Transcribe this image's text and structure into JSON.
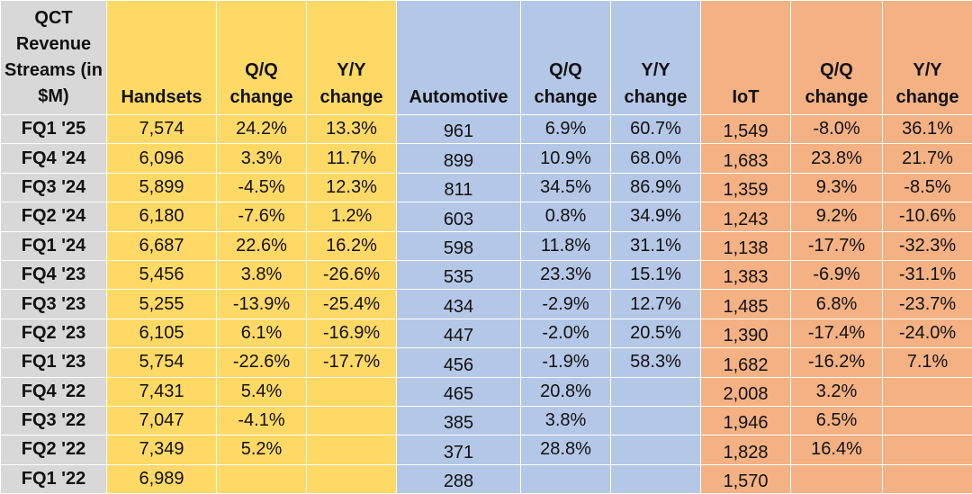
{
  "chart_data": {
    "type": "table",
    "columns": [
      "QCT Revenue Streams (in $M)",
      "Handsets",
      "Q/Q change",
      "Y/Y change",
      "Automotive",
      "Q/Q change",
      "Y/Y change",
      "IoT",
      "Q/Q change",
      "Y/Y change"
    ],
    "colors": {
      "quarter": "#d8d8d8",
      "handsets": "#ffd966",
      "automotive": "#b4c7e7",
      "iot": "#f4b183"
    },
    "rows": [
      [
        "FQ1 '25",
        "7,574",
        "24.2%",
        "13.3%",
        "961",
        "6.9%",
        "60.7%",
        "1,549",
        "-8.0%",
        "36.1%"
      ],
      [
        "FQ4 '24",
        "6,096",
        "3.3%",
        "11.7%",
        "899",
        "10.9%",
        "68.0%",
        "1,683",
        "23.8%",
        "21.7%"
      ],
      [
        "FQ3 '24",
        "5,899",
        "-4.5%",
        "12.3%",
        "811",
        "34.5%",
        "86.9%",
        "1,359",
        "9.3%",
        "-8.5%"
      ],
      [
        "FQ2 '24",
        "6,180",
        "-7.6%",
        "1.2%",
        "603",
        "0.8%",
        "34.9%",
        "1,243",
        "9.2%",
        "-10.6%"
      ],
      [
        "FQ1 '24",
        "6,687",
        "22.6%",
        "16.2%",
        "598",
        "11.8%",
        "31.1%",
        "1,138",
        "-17.7%",
        "-32.3%"
      ],
      [
        "FQ4 '23",
        "5,456",
        "3.8%",
        "-26.6%",
        "535",
        "23.3%",
        "15.1%",
        "1,383",
        "-6.9%",
        "-31.1%"
      ],
      [
        "FQ3 '23",
        "5,255",
        "-13.9%",
        "-25.4%",
        "434",
        "-2.9%",
        "12.7%",
        "1,485",
        "6.8%",
        "-23.7%"
      ],
      [
        "FQ2 '23",
        "6,105",
        "6.1%",
        "-16.9%",
        "447",
        "-2.0%",
        "20.5%",
        "1,390",
        "-17.4%",
        "-24.0%"
      ],
      [
        "FQ1 '23",
        "5,754",
        "-22.6%",
        "-17.7%",
        "456",
        "-1.9%",
        "58.3%",
        "1,682",
        "-16.2%",
        "7.1%"
      ],
      [
        "FQ4 '22",
        "7,431",
        "5.4%",
        "",
        "465",
        "20.8%",
        "",
        "2,008",
        "3.2%",
        ""
      ],
      [
        "FQ3 '22",
        "7,047",
        "-4.1%",
        "",
        "385",
        "3.8%",
        "",
        "1,946",
        "6.5%",
        ""
      ],
      [
        "FQ2 '22",
        "7,349",
        "5.2%",
        "",
        "371",
        "28.8%",
        "",
        "1,828",
        "16.4%",
        ""
      ],
      [
        "FQ1 '22",
        "6,989",
        "",
        "",
        "288",
        "",
        "",
        "1,570",
        "",
        ""
      ]
    ]
  }
}
